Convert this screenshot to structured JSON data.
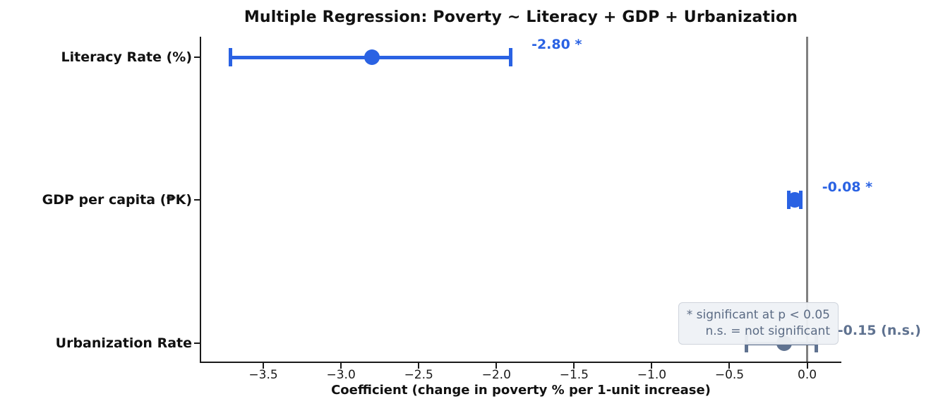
{
  "chart_data": {
    "type": "scatter",
    "subtype": "coefficient-forest-plot",
    "title": "Multiple Regression: Poverty ~ Literacy + GDP + Urbanization",
    "xlabel": "Coefficient (change in poverty % per 1-unit increase)",
    "ylabel": "",
    "xlim": [
      -3.9,
      0.22
    ],
    "x_ticks": [
      -3.5,
      -3.0,
      -2.5,
      -2.0,
      -1.5,
      -1.0,
      -0.5,
      0.0
    ],
    "zero_reference_line": 0,
    "grid": false,
    "rows": [
      {
        "label": "Literacy Rate (%)",
        "coef": -2.8,
        "ci_low": -3.71,
        "ci_high": -1.91,
        "significant": true,
        "annotation": "-2.80 *"
      },
      {
        "label": "GDP per capita (₱K)",
        "coef": -0.08,
        "ci_low": -0.12,
        "ci_high": -0.04,
        "significant": true,
        "annotation": "-0.08 *"
      },
      {
        "label": "Urbanization Rate",
        "coef": -0.15,
        "ci_low": -0.39,
        "ci_high": 0.06,
        "significant": false,
        "annotation": "-0.15 (n.s.)"
      }
    ],
    "legend_note": {
      "line1": "* significant at p < 0.05",
      "line2": "n.s. = not significant"
    },
    "colors": {
      "significant": "#2a62e3",
      "not_significant": "#5f7290",
      "zero_line": "#808080",
      "axis": "#1a1a1a",
      "note_bg": "#edf1f6",
      "note_border": "#cfd4dc",
      "note_text": "#5b6b84",
      "background": "#ffffff"
    }
  }
}
